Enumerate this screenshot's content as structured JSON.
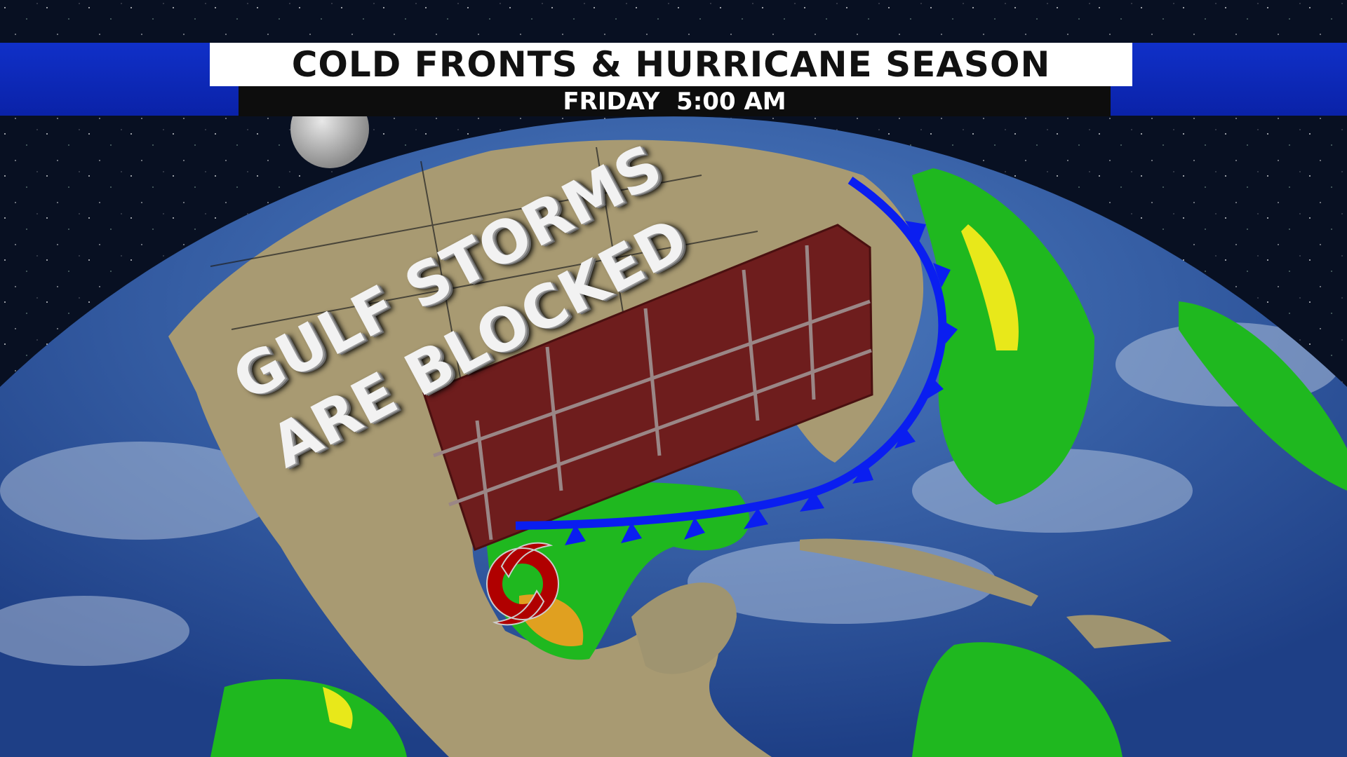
{
  "header": {
    "title": "COLD FRONTS & HURRICANE SEASON",
    "subtitle": "FRIDAY  5:00 AM"
  },
  "map": {
    "message_line1": "GULF STORMS",
    "message_line2": "ARE BLOCKED",
    "features": [
      "globe",
      "moon",
      "radar-precipitation",
      "cold-front",
      "brick-wall",
      "tropical-storm-icon"
    ],
    "colors": {
      "band": "#1030c8",
      "cold_front": "#0a1ef0",
      "wall": "#6e1d1d",
      "hurricane": "#b00000",
      "ocean": "#2d5aa5",
      "radar_green": "#1fb81f"
    }
  }
}
